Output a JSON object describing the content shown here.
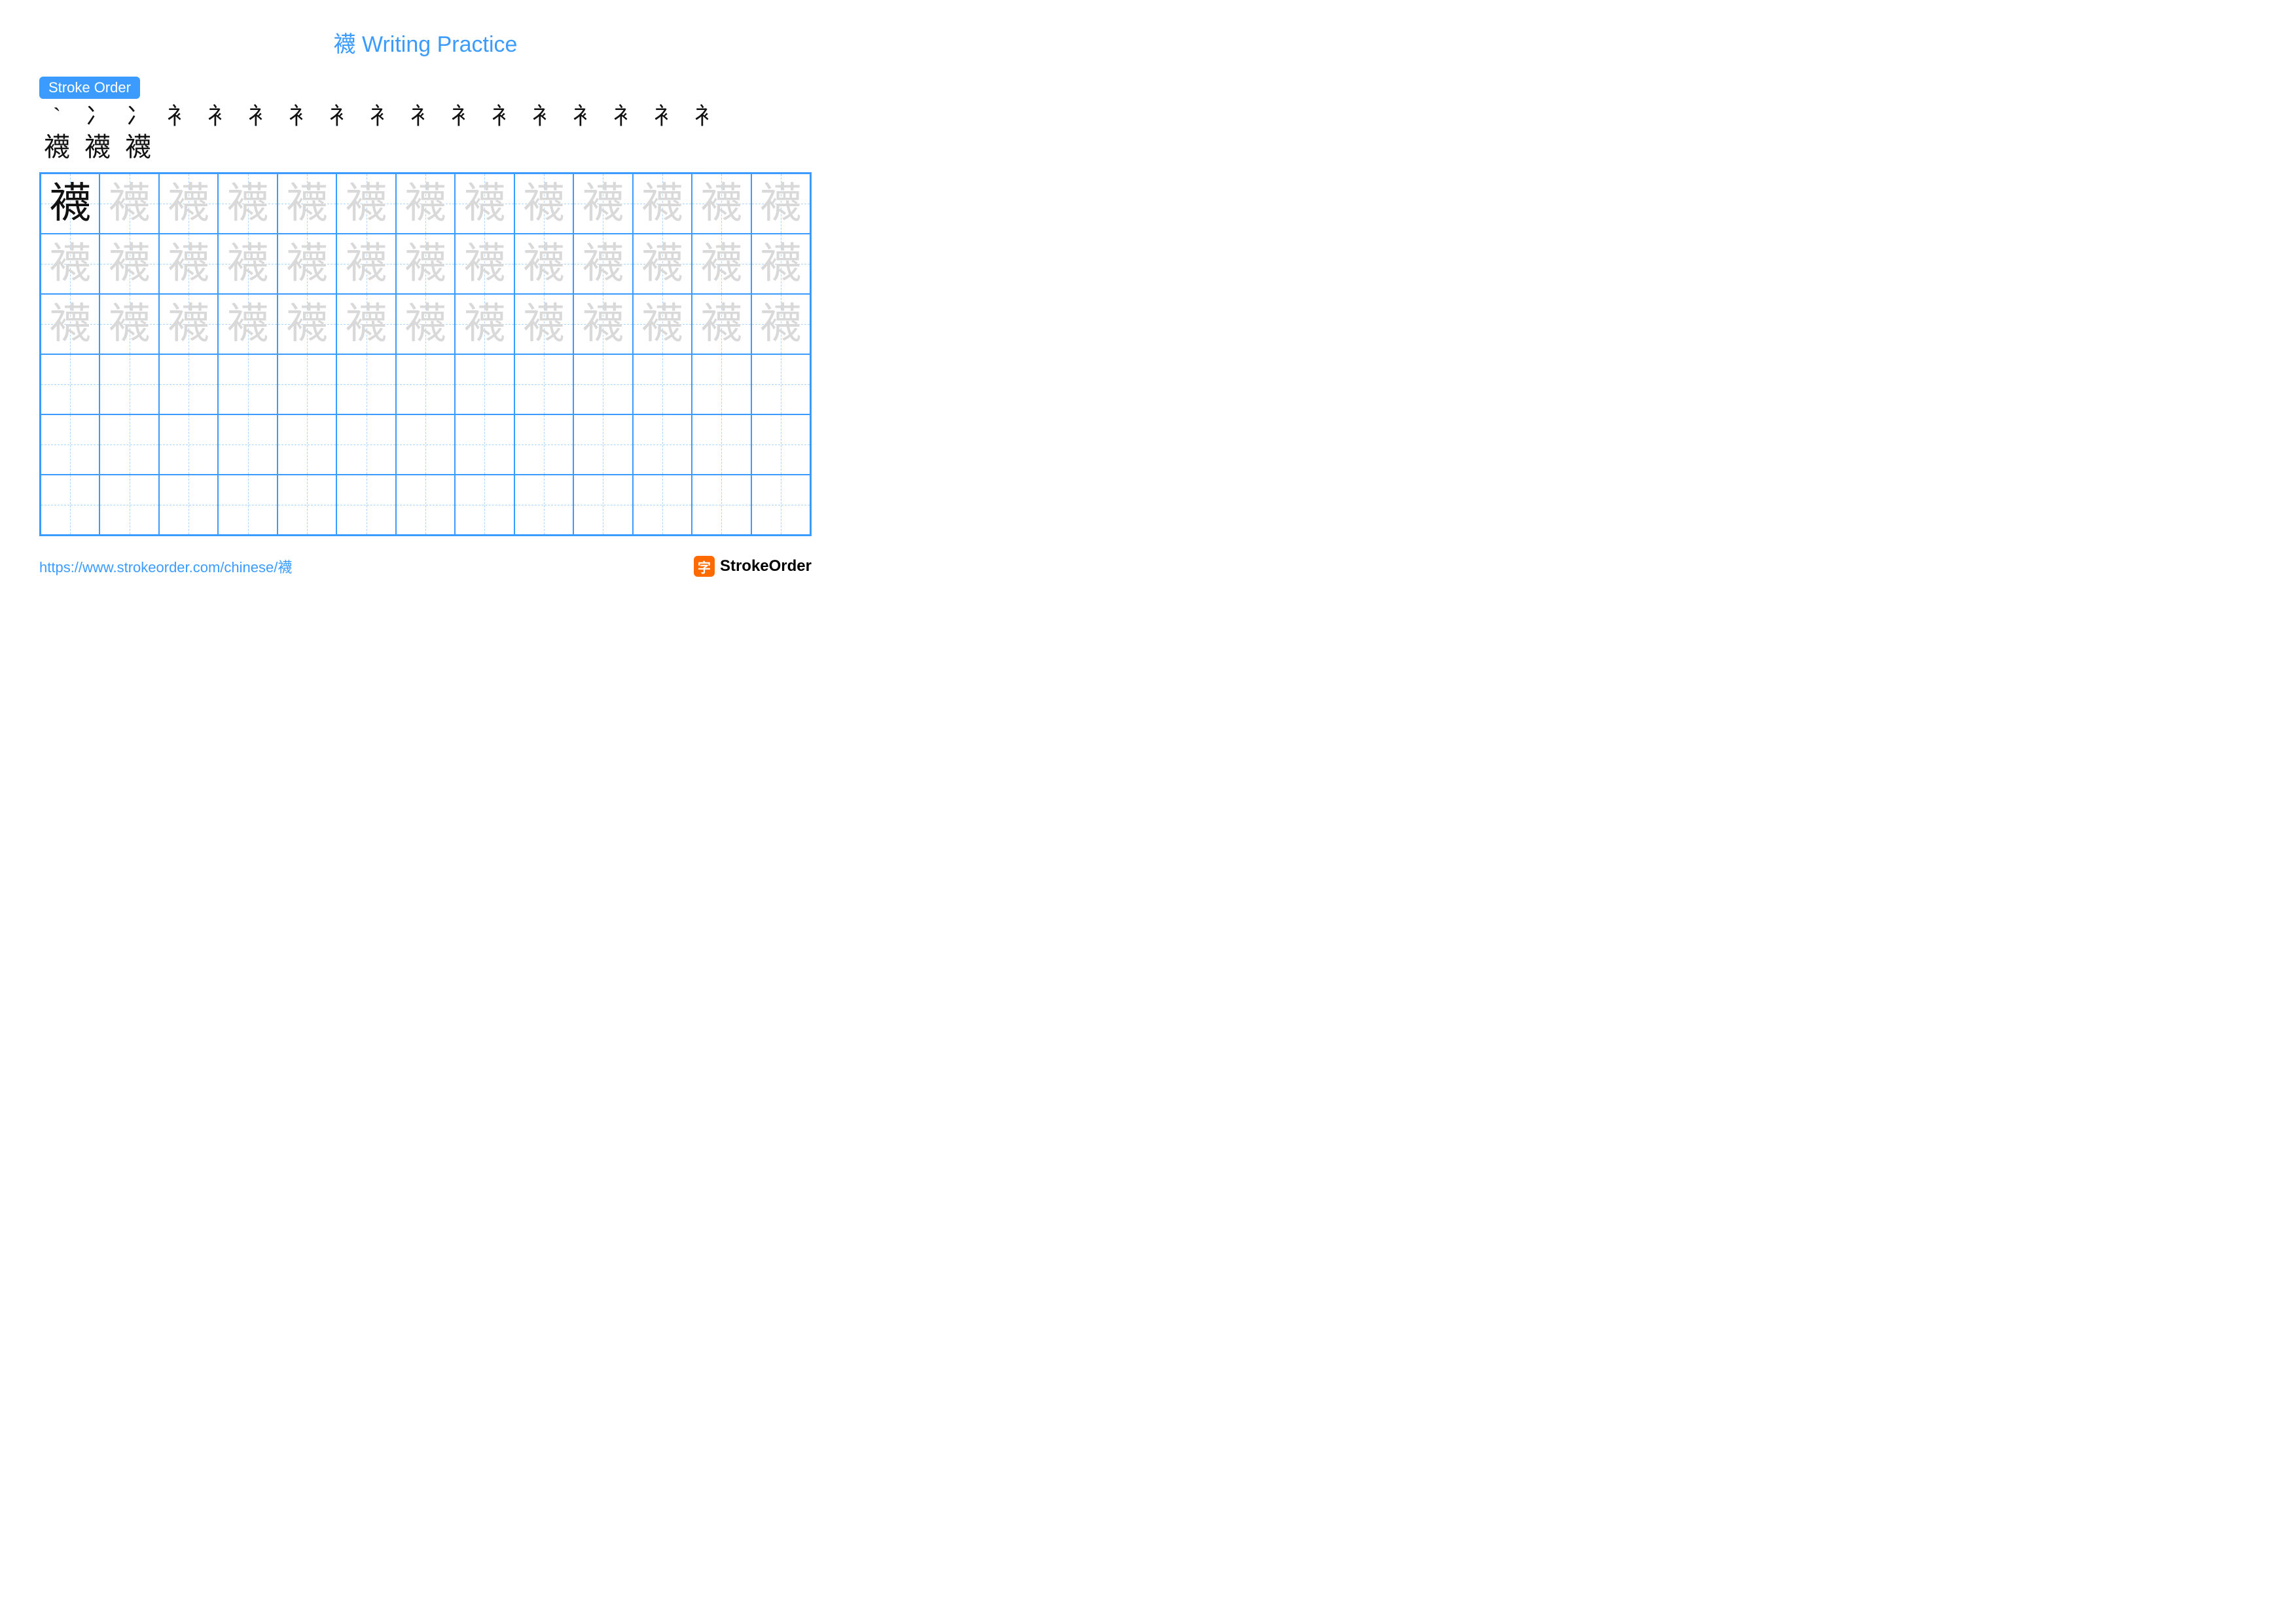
{
  "title": "襪 Writing Practice",
  "colors": {
    "accent": "#3b9bff",
    "ghost": "#d9d9d9",
    "ink": "#111111",
    "url": "#3b9bff",
    "badge_bg": "#3b9bff"
  },
  "stroke_badge": "Stroke Order",
  "character": "襪",
  "stroke_steps_count": 20,
  "stroke_steps_row1": [
    "`",
    "冫",
    "冫",
    "衤",
    "衤",
    "衤",
    "衤",
    "衤",
    "衤",
    "衤",
    "衤",
    "衤",
    "衤",
    "衤",
    "衤",
    "衤",
    "衤"
  ],
  "stroke_steps_row2": [
    "襪",
    "襪",
    "襪"
  ],
  "grid": {
    "cols": 13,
    "rows": 6,
    "traced_rows": 3,
    "model_char": "襪"
  },
  "footer": {
    "url": "https://www.strokeorder.com/chinese/襪",
    "brand_name": "StrokeOrder",
    "brand_glyph": "字"
  }
}
